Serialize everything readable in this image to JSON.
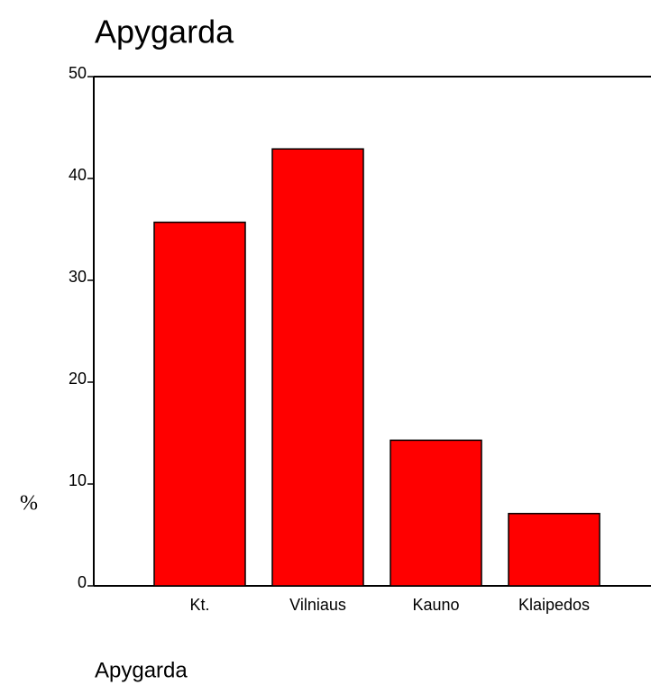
{
  "chart_data": {
    "type": "bar",
    "title": "Apygarda",
    "xlabel": "Apygarda",
    "ylabel": "%",
    "categories": [
      "Kt.",
      "Vilniaus",
      "Kauno",
      "Klaipedos"
    ],
    "values": [
      35.7,
      42.9,
      14.3,
      7.1
    ],
    "color": "#ff0000",
    "ylim": [
      0,
      50
    ],
    "yticks": [
      0,
      10,
      20,
      30,
      40,
      50
    ]
  }
}
